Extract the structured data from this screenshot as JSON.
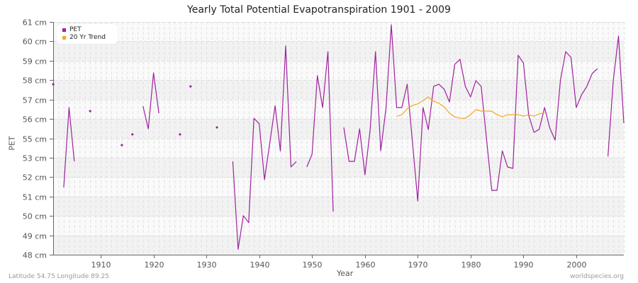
{
  "title": "Yearly Total Potential Evapotranspiration 1901 - 2009",
  "footer": {
    "location": "Latitude 54.75 Longitude 89.25",
    "source": "worldspecies.org"
  },
  "colors": {
    "pet": "#a020a0",
    "trend": "#f5a623",
    "band_dark": "#f2f2f2",
    "band_light": "#fafafa",
    "grid": "#e0e0e0",
    "axis": "#666666"
  },
  "legend": [
    {
      "label": "PET",
      "color": "#a020a0"
    },
    {
      "label": "20 Yr Trend",
      "color": "#f5a623"
    }
  ],
  "chart_data": {
    "type": "line",
    "title": "Yearly Total Potential Evapotranspiration 1901 - 2009",
    "xlabel": "Year",
    "ylabel": "PET",
    "xlim": [
      1901,
      2009
    ],
    "ylim": [
      48,
      61
    ],
    "x_ticks": [
      1910,
      1920,
      1930,
      1940,
      1950,
      1960,
      1970,
      1980,
      1990,
      2000
    ],
    "y_ticks": [
      {
        "value": 48.0,
        "label": "48 cm"
      },
      {
        "value": 49.083,
        "label": "49 cm"
      },
      {
        "value": 50.167,
        "label": "50 cm"
      },
      {
        "value": 51.25,
        "label": "51 cm"
      },
      {
        "value": 52.333,
        "label": "52 cm"
      },
      {
        "value": 53.417,
        "label": "53 cm"
      },
      {
        "value": 54.5,
        "label": "55 cm"
      },
      {
        "value": 55.583,
        "label": "56 cm"
      },
      {
        "value": 56.667,
        "label": "57 cm"
      },
      {
        "value": 57.75,
        "label": "58 cm"
      },
      {
        "value": 58.833,
        "label": "59 cm"
      },
      {
        "value": 59.917,
        "label": "60 cm"
      },
      {
        "value": 61.0,
        "label": "61 cm"
      }
    ],
    "grid": true,
    "legend_position": "top-left",
    "series": [
      {
        "name": "PET",
        "color": "#a020a0",
        "points": [
          [
            1901,
            57.52
          ],
          [
            1902,
            null
          ],
          [
            1903,
            51.75
          ],
          [
            1904,
            56.22
          ],
          [
            1905,
            53.21
          ],
          [
            1906,
            null
          ],
          [
            1907,
            null
          ],
          [
            1908,
            56.02
          ],
          [
            1909,
            null
          ],
          [
            1910,
            null
          ],
          [
            1911,
            null
          ],
          [
            1912,
            null
          ],
          [
            1913,
            null
          ],
          [
            1914,
            54.12
          ],
          [
            1915,
            null
          ],
          [
            1916,
            54.72
          ],
          [
            1917,
            null
          ],
          [
            1918,
            56.3
          ],
          [
            1919,
            55.03
          ],
          [
            1920,
            58.15
          ],
          [
            1921,
            55.9
          ],
          [
            1922,
            null
          ],
          [
            1923,
            null
          ],
          [
            1924,
            null
          ],
          [
            1925,
            54.72
          ],
          [
            1926,
            null
          ],
          [
            1927,
            57.4
          ],
          [
            1928,
            null
          ],
          [
            1929,
            null
          ],
          [
            1930,
            null
          ],
          [
            1931,
            null
          ],
          [
            1932,
            55.11
          ],
          [
            1933,
            null
          ],
          [
            1934,
            null
          ],
          [
            1935,
            53.21
          ],
          [
            1936,
            48.3
          ],
          [
            1937,
            50.18
          ],
          [
            1938,
            49.79
          ],
          [
            1939,
            55.62
          ],
          [
            1940,
            55.31
          ],
          [
            1941,
            52.19
          ],
          [
            1942,
            54.25
          ],
          [
            1943,
            56.32
          ],
          [
            1944,
            53.79
          ],
          [
            1945,
            59.66
          ],
          [
            1946,
            52.9
          ],
          [
            1947,
            53.2
          ],
          [
            1948,
            null
          ],
          [
            1949,
            52.9
          ],
          [
            1950,
            53.61
          ],
          [
            1951,
            58.0
          ],
          [
            1952,
            56.22
          ],
          [
            1953,
            59.34
          ],
          [
            1954,
            50.41
          ],
          [
            1955,
            null
          ],
          [
            1956,
            55.11
          ],
          [
            1957,
            53.21
          ],
          [
            1958,
            53.21
          ],
          [
            1959,
            55.03
          ],
          [
            1960,
            52.46
          ],
          [
            1961,
            54.99
          ],
          [
            1962,
            59.34
          ],
          [
            1963,
            53.8
          ],
          [
            1964,
            56.22
          ],
          [
            1965,
            60.84
          ],
          [
            1966,
            56.22
          ],
          [
            1967,
            56.22
          ],
          [
            1968,
            57.52
          ],
          [
            1969,
            54.26
          ],
          [
            1970,
            51.0
          ],
          [
            1971,
            56.22
          ],
          [
            1972,
            54.99
          ],
          [
            1973,
            57.4
          ],
          [
            1974,
            57.52
          ],
          [
            1975,
            57.24
          ],
          [
            1976,
            56.53
          ],
          [
            1977,
            58.63
          ],
          [
            1978,
            58.91
          ],
          [
            1979,
            57.4
          ],
          [
            1980,
            56.81
          ],
          [
            1981,
            57.72
          ],
          [
            1982,
            57.4
          ],
          [
            1983,
            54.5
          ],
          [
            1984,
            51.59
          ],
          [
            1985,
            51.59
          ],
          [
            1986,
            53.8
          ],
          [
            1987,
            52.9
          ],
          [
            1988,
            52.82
          ],
          [
            1989,
            59.14
          ],
          [
            1990,
            58.71
          ],
          [
            1991,
            55.78
          ],
          [
            1992,
            54.83
          ],
          [
            1993,
            55.0
          ],
          [
            1994,
            56.22
          ],
          [
            1995,
            55.07
          ],
          [
            1996,
            54.4
          ],
          [
            1997,
            57.76
          ],
          [
            1998,
            59.34
          ],
          [
            1999,
            59.02
          ],
          [
            2000,
            56.22
          ],
          [
            2001,
            56.93
          ],
          [
            2002,
            57.4
          ],
          [
            2003,
            58.11
          ],
          [
            2004,
            58.39
          ],
          [
            2005,
            null
          ],
          [
            2006,
            53.49
          ],
          [
            2007,
            57.72
          ],
          [
            2008,
            60.21
          ],
          [
            2009,
            55.35
          ]
        ]
      },
      {
        "name": "20 Yr Trend",
        "color": "#f5a623",
        "points": [
          [
            1966,
            55.73
          ],
          [
            1967,
            55.82
          ],
          [
            1968,
            56.14
          ],
          [
            1969,
            56.34
          ],
          [
            1970,
            56.42
          ],
          [
            1971,
            56.61
          ],
          [
            1972,
            56.81
          ],
          [
            1973,
            56.57
          ],
          [
            1974,
            56.45
          ],
          [
            1975,
            56.26
          ],
          [
            1976,
            55.9
          ],
          [
            1977,
            55.7
          ],
          [
            1978,
            55.62
          ],
          [
            1979,
            55.62
          ],
          [
            1980,
            55.82
          ],
          [
            1981,
            56.1
          ],
          [
            1982,
            56.02
          ],
          [
            1983,
            56.02
          ],
          [
            1984,
            56.02
          ],
          [
            1985,
            55.82
          ],
          [
            1986,
            55.7
          ],
          [
            1987,
            55.82
          ],
          [
            1988,
            55.82
          ],
          [
            1989,
            55.82
          ],
          [
            1990,
            55.74
          ],
          [
            1991,
            55.82
          ],
          [
            1992,
            55.74
          ],
          [
            1993,
            55.86
          ],
          [
            1994,
            55.94
          ]
        ]
      }
    ]
  }
}
